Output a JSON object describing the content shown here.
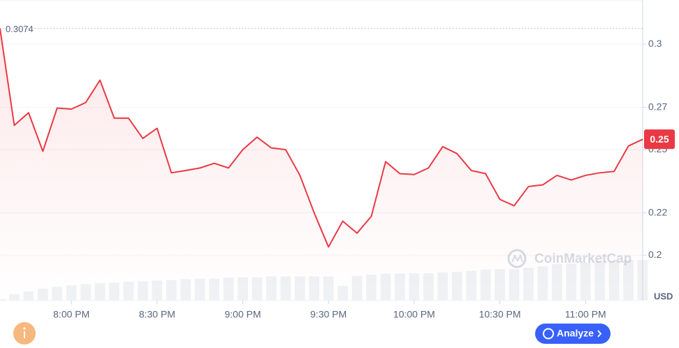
{
  "chart_data": {
    "type": "line",
    "categories": [
      null,
      null,
      null,
      null,
      null,
      "8:00 PM",
      null,
      null,
      null,
      null,
      null,
      "8:30 PM",
      null,
      null,
      null,
      null,
      null,
      "9:00 PM",
      null,
      null,
      null,
      null,
      null,
      "9:30 PM",
      null,
      null,
      null,
      null,
      null,
      "10:00 PM",
      null,
      null,
      null,
      null,
      null,
      "10:30 PM",
      null,
      null,
      null,
      null,
      null,
      "11:00 PM",
      null,
      null,
      null,
      null
    ],
    "values": [
      0.3074,
      0.2615,
      0.2675,
      0.2492,
      0.2697,
      0.2692,
      0.2723,
      0.2829,
      0.2649,
      0.2649,
      0.2553,
      0.2601,
      0.239,
      0.2401,
      0.2413,
      0.2435,
      0.2413,
      0.25,
      0.2559,
      0.2508,
      0.25,
      0.2378,
      0.22,
      0.2039,
      0.2161,
      0.2104,
      0.2184,
      0.2443,
      0.2386,
      0.2382,
      0.2413,
      0.2514,
      0.2481,
      0.2401,
      0.2386,
      0.2264,
      0.2234,
      0.2325,
      0.2333,
      0.2378,
      0.2356,
      0.2378,
      0.239,
      0.2397,
      0.2517,
      0.2549
    ],
    "color": "#ea3943",
    "ylim": [
      0.1785,
      0.3209
    ],
    "yticks": [
      0.3,
      0.27,
      0.25,
      0.22,
      0.2
    ],
    "grid": true,
    "high": 0.3074,
    "last_price_label": "0.25",
    "volume": {
      "values": [
        3,
        14,
        20,
        26,
        30,
        33,
        36,
        38,
        39,
        41,
        42,
        44,
        45,
        47,
        48,
        48,
        50,
        51,
        51,
        53,
        53,
        53,
        53,
        53,
        32,
        54,
        57,
        59,
        59,
        60,
        60,
        62,
        63,
        65,
        68,
        69,
        69,
        72,
        75,
        80,
        81,
        83,
        86,
        87,
        89,
        89
      ],
      "color": "#eff2f5"
    },
    "y2lim": [
      0,
      100
    ],
    "currency": "USD",
    "watermark": "CoinMarketCap",
    "button": "Analyze"
  }
}
